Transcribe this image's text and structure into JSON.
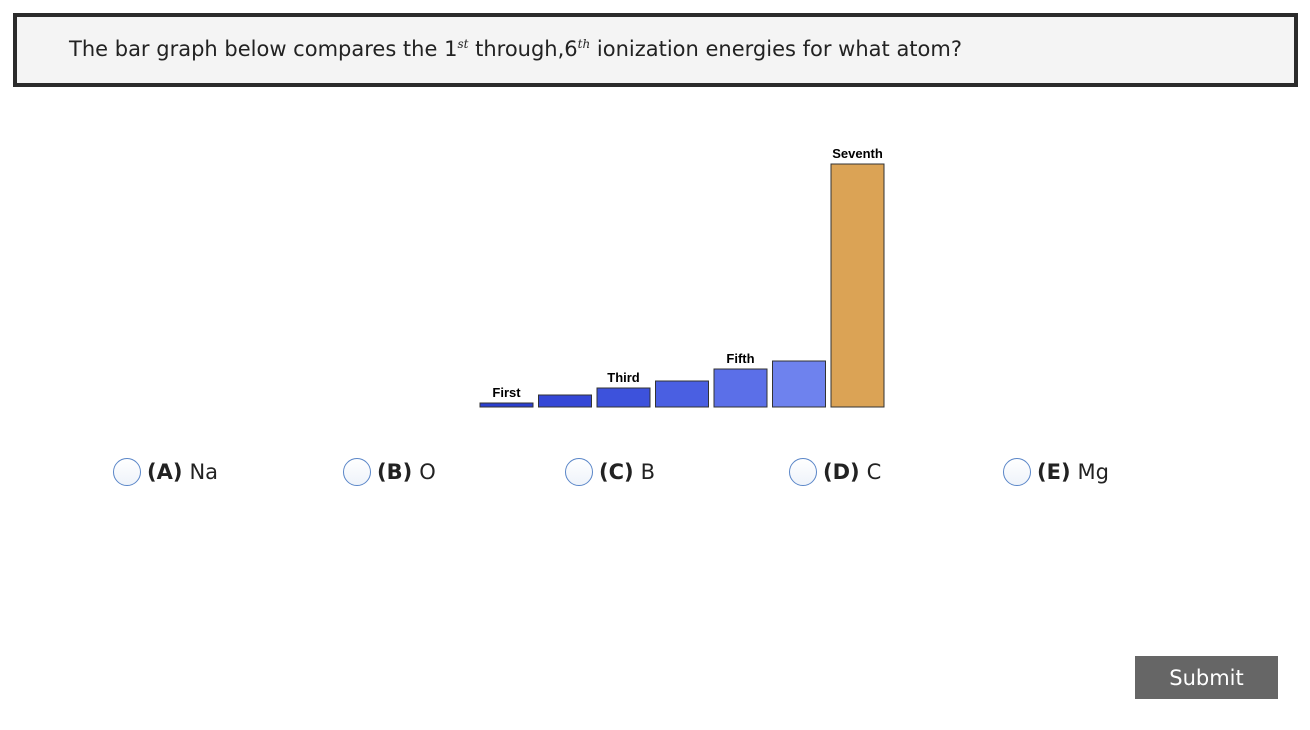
{
  "question": {
    "before": "The bar graph below compares the 1",
    "sup1": "st",
    "middle": " through,6",
    "sup2": "th",
    "after": " ionization energies for what atom?"
  },
  "chart_data": {
    "type": "bar",
    "categories": [
      "First",
      null,
      "Third",
      null,
      "Fifth",
      null,
      "Seventh"
    ],
    "values": [
      4,
      12,
      19,
      26,
      38,
      46,
      243
    ],
    "colors": [
      "#2b3fcf",
      "#3447d6",
      "#3d52dc",
      "#4a5fe2",
      "#5b6fe8",
      "#6e82ee",
      "#dba355"
    ]
  },
  "options": [
    {
      "letter": "(A)",
      "answer": "Na"
    },
    {
      "letter": "(B)",
      "answer": "O"
    },
    {
      "letter": "(C)",
      "answer": "B"
    },
    {
      "letter": "(D)",
      "answer": "C"
    },
    {
      "letter": "(E)",
      "answer": "Mg"
    }
  ],
  "submit": "Submit"
}
